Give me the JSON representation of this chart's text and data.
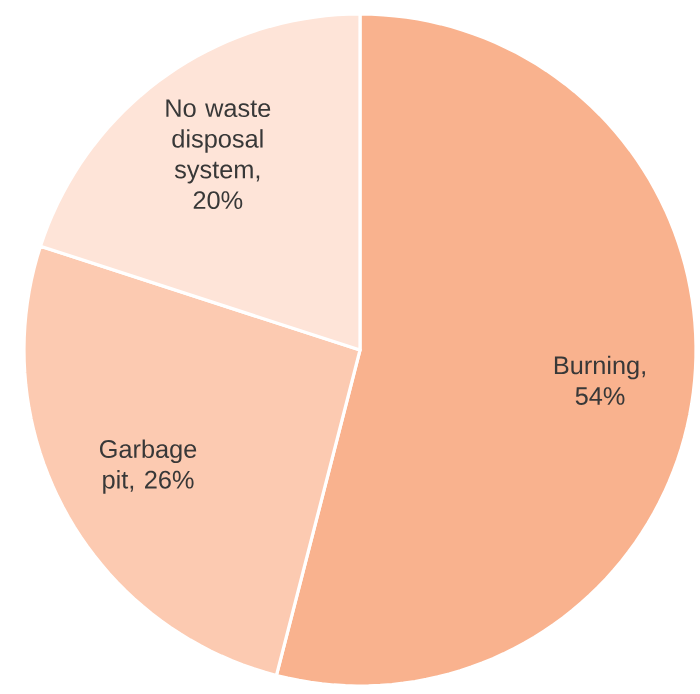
{
  "chart_data": {
    "type": "pie",
    "categories": [
      "Burning",
      "Garbage pit",
      "No waste disposal system"
    ],
    "values": [
      54,
      26,
      20
    ],
    "value_labels": [
      ", 54%",
      ", 26%",
      ", 20%"
    ],
    "colors": [
      "#f9b28e",
      "#fccab1",
      "#fee4d8"
    ]
  }
}
